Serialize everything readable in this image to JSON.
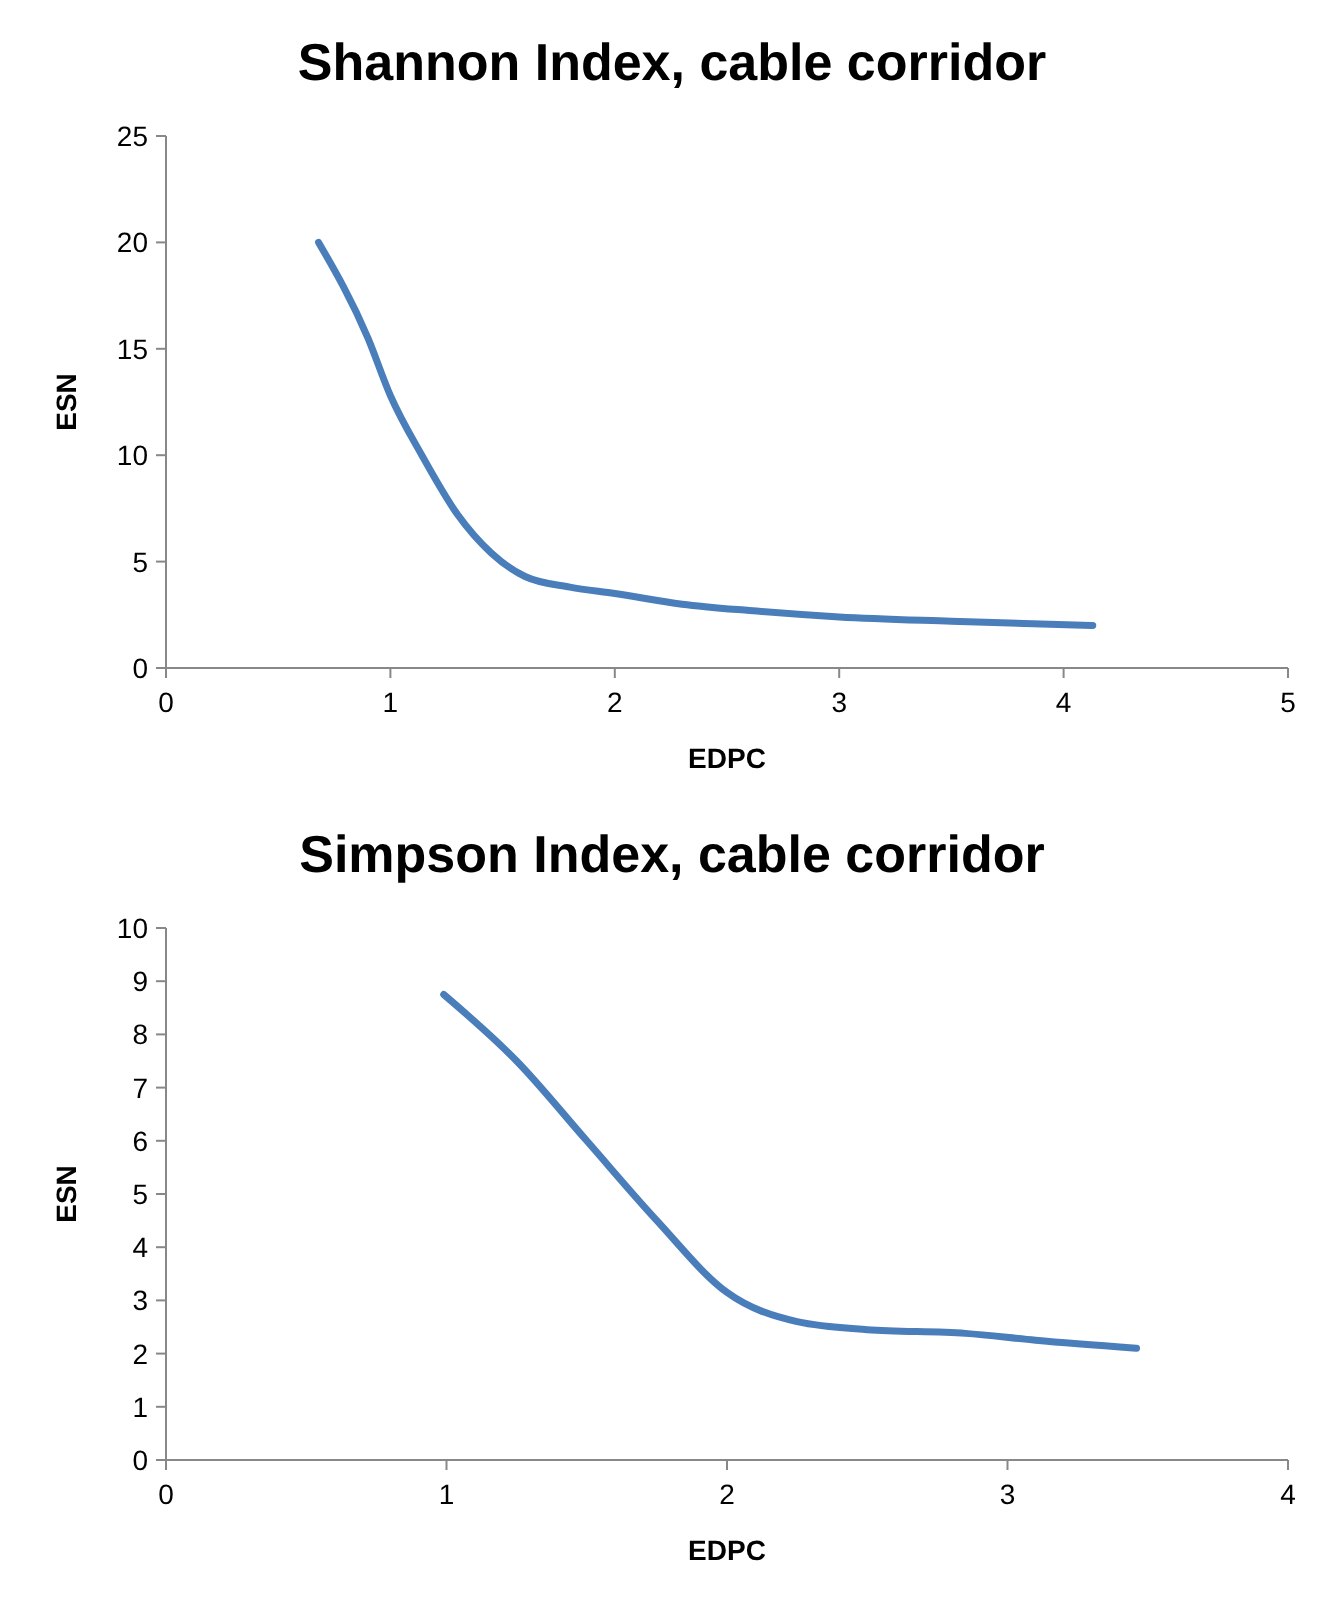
{
  "chart_data": [
    {
      "type": "line",
      "title": "Shannon Index, cable corridor",
      "xlabel": "EDPC",
      "ylabel": "ESN",
      "xlim": [
        0,
        5
      ],
      "xticks": [
        0,
        1,
        2,
        3,
        4,
        5
      ],
      "ylim": [
        0,
        25
      ],
      "yticks": [
        0,
        5,
        10,
        15,
        20,
        25
      ],
      "marker": "none",
      "line_style": "solid",
      "series": [
        {
          "color": "#4a7ebb",
          "x": [
            0.68,
            0.9,
            1,
            1.14,
            1.3,
            1.45,
            1.6,
            1.8,
            2,
            2.3,
            2.6,
            3,
            3.5,
            4.13
          ],
          "values": [
            20,
            15.5,
            12.8,
            10,
            7.2,
            5.4,
            4.3,
            3.8,
            3.5,
            3.0,
            2.7,
            2.4,
            2.2,
            2.0
          ]
        }
      ]
    },
    {
      "type": "line",
      "title": "Simpson Index, cable corridor",
      "xlabel": "EDPC",
      "ylabel": "ESN",
      "xlim": [
        0,
        4
      ],
      "xticks": [
        0,
        1,
        2,
        3,
        4
      ],
      "ylim": [
        0,
        10
      ],
      "yticks": [
        0,
        1,
        2,
        3,
        4,
        5,
        6,
        7,
        8,
        9,
        10
      ],
      "marker": "none",
      "line_style": "solid",
      "series": [
        {
          "color": "#4a7ebb",
          "x": [
            0.99,
            1.25,
            1.5,
            1.75,
            2,
            2.25,
            2.5,
            2.85,
            3.1,
            3.46
          ],
          "values": [
            8.75,
            7.5,
            6.0,
            4.5,
            3.15,
            2.6,
            2.45,
            2.38,
            2.25,
            2.1
          ]
        }
      ]
    }
  ]
}
